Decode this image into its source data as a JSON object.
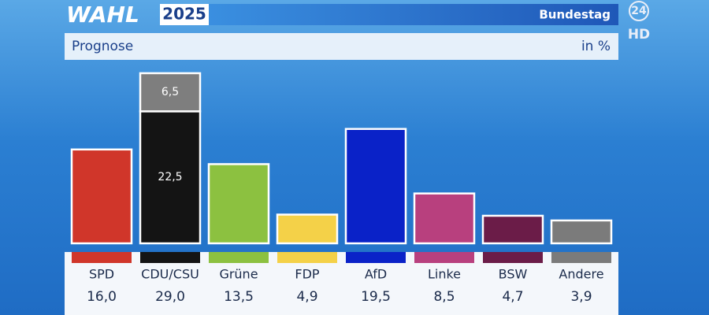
{
  "chart_data": {
    "type": "bar",
    "brand": "WAHL",
    "year": "2025",
    "subtitle": "Bundestag",
    "logo": [
      "24",
      "HD"
    ],
    "title": "Prognose",
    "unit_label": "in %",
    "categories": [
      "SPD",
      "CDU/CSU",
      "Grüne",
      "FDP",
      "AfD",
      "Linke",
      "BSW",
      "Andere"
    ],
    "values": [
      16.0,
      29.0,
      13.5,
      4.9,
      19.5,
      8.5,
      4.7,
      3.9
    ],
    "value_labels": [
      "16,0",
      "29,0",
      "13,5",
      "4,9",
      "19,5",
      "8,5",
      "4,7",
      "3,9"
    ],
    "colors": [
      "#d0362a",
      "#141414",
      "#8cc140",
      "#f4d148",
      "#0a22c8",
      "#b8407e",
      "#6b1c48",
      "#7b7b7b"
    ],
    "segments": [
      null,
      [
        {
          "value": 22.5,
          "label": "22,5",
          "color": "#141414"
        },
        {
          "value": 6.5,
          "label": "6,5",
          "color": "#7e7e7e"
        }
      ],
      null,
      null,
      null,
      null,
      null,
      null
    ]
  }
}
